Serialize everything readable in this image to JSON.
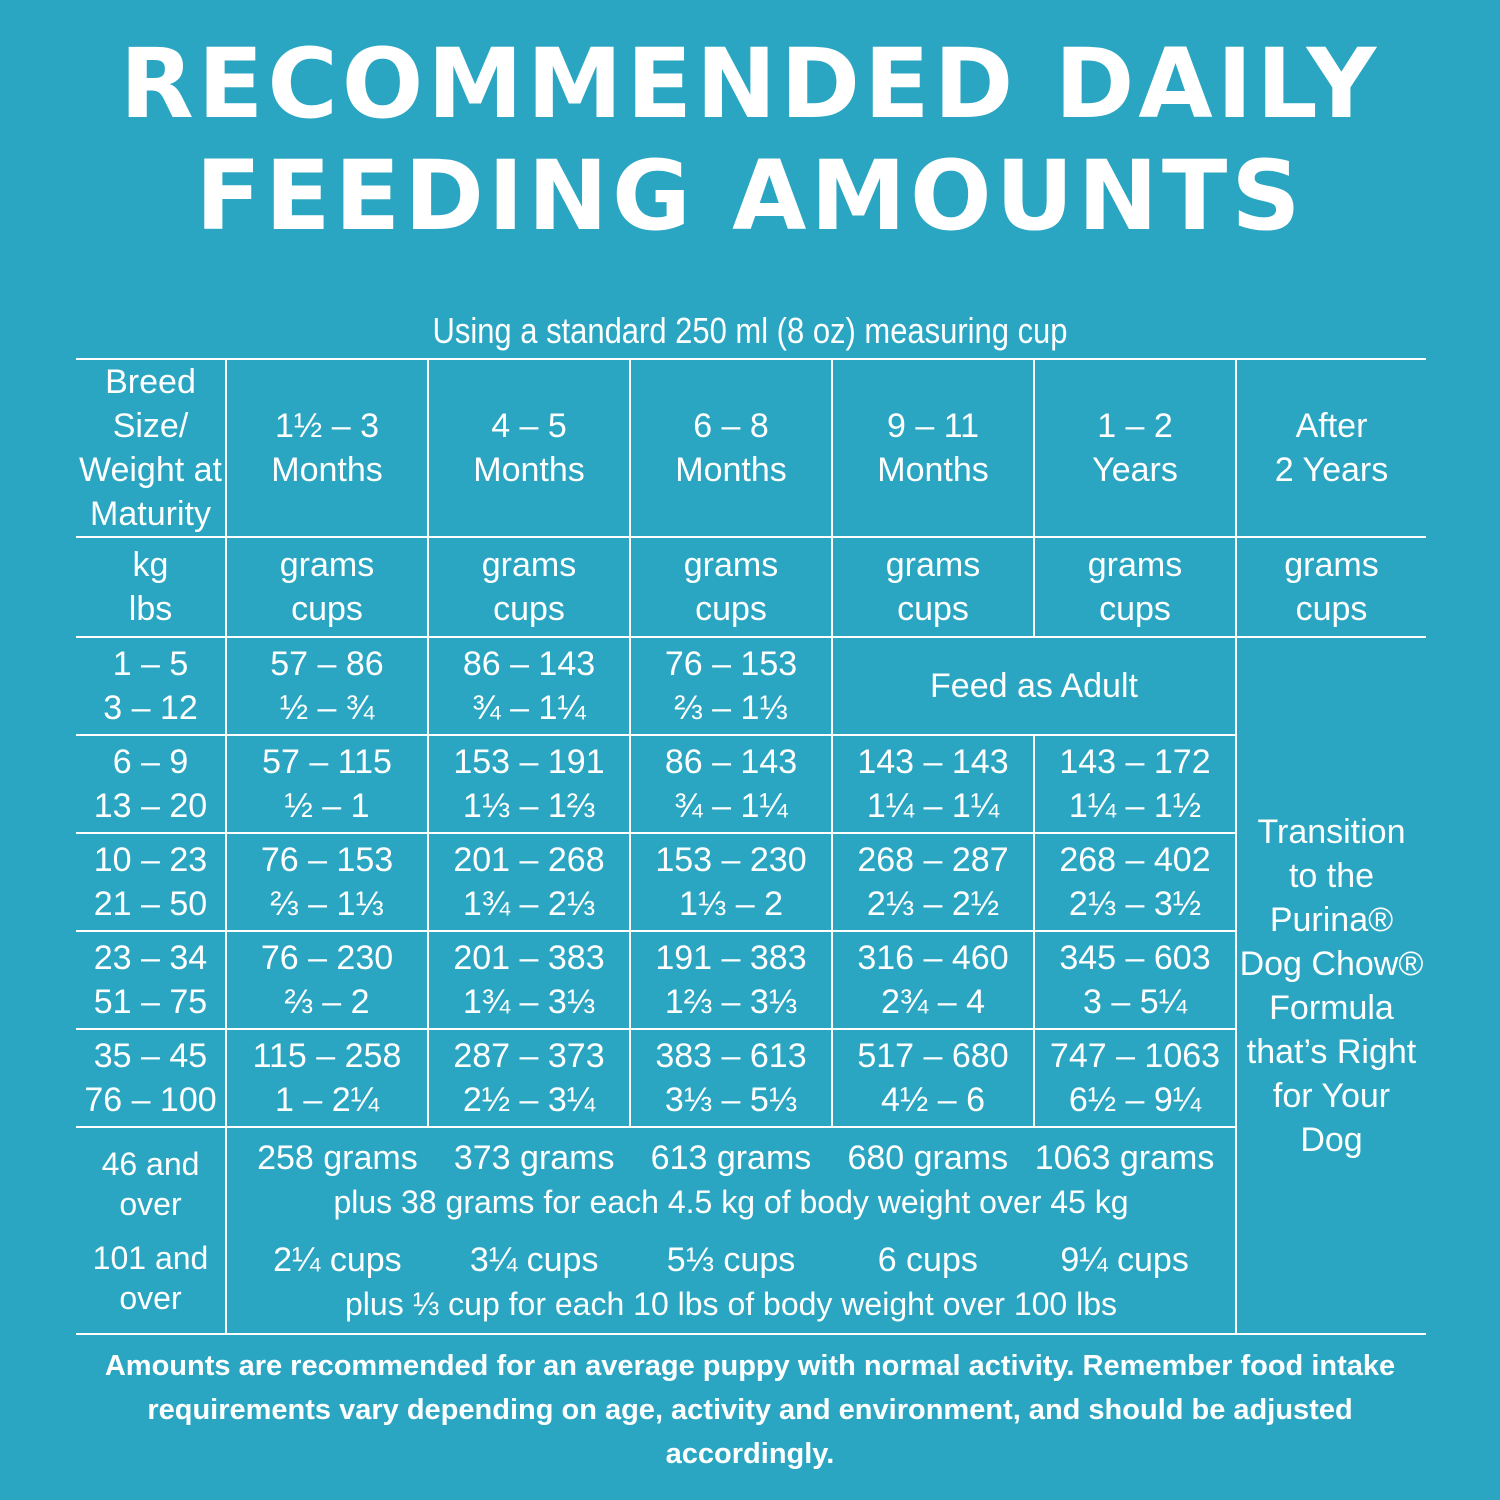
{
  "title": {
    "line1": "RECOMMENDED DAILY",
    "line2": "FEEDING AMOUNTS"
  },
  "subtitle": "Using a standard 250 ml (8 oz) measuring cup",
  "header": {
    "breed_line1": "Breed Size/",
    "breed_line2": "Weight at",
    "breed_line3": "Maturity",
    "col1": {
      "line1": "1½ – 3",
      "line2": "Months"
    },
    "col2": {
      "line1": "4 – 5",
      "line2": "Months"
    },
    "col3": {
      "line1": "6 – 8",
      "line2": "Months"
    },
    "col4": {
      "line1": "9 – 11",
      "line2": "Months"
    },
    "col5": {
      "line1": "1 – 2",
      "line2": "Years"
    },
    "col6": {
      "line1": "After",
      "line2": "2 Years"
    }
  },
  "units": {
    "weight": {
      "line1": "kg",
      "line2": "lbs"
    },
    "amount": {
      "line1": "grams",
      "line2": "cups"
    }
  },
  "rows": [
    {
      "kg": "1 – 5",
      "lbs": "3 – 12",
      "c1": {
        "grams": "57 – 86",
        "cups": "½ – ¾"
      },
      "c2": {
        "grams": "86 – 143",
        "cups": "¾ – 1¼"
      },
      "c3": {
        "grams": "76 – 153",
        "cups": "⅔ – 1⅓"
      },
      "adult": "Feed as Adult"
    },
    {
      "kg": "6 – 9",
      "lbs": "13 – 20",
      "c1": {
        "grams": "57 – 115",
        "cups": "½ – 1"
      },
      "c2": {
        "grams": "153 – 191",
        "cups": "1⅓ – 1⅔"
      },
      "c3": {
        "grams": "86 – 143",
        "cups": "¾ – 1¼"
      },
      "c4": {
        "grams": "143 – 143",
        "cups": "1¼ – 1¼"
      },
      "c5": {
        "grams": "143 – 172",
        "cups": "1¼ – 1½"
      }
    },
    {
      "kg": "10 – 23",
      "lbs": "21 – 50",
      "c1": {
        "grams": "76 – 153",
        "cups": "⅔ – 1⅓"
      },
      "c2": {
        "grams": "201 – 268",
        "cups": "1¾ – 2⅓"
      },
      "c3": {
        "grams": "153 – 230",
        "cups": "1⅓ – 2"
      },
      "c4": {
        "grams": "268 – 287",
        "cups": "2⅓ – 2½"
      },
      "c5": {
        "grams": "268 – 402",
        "cups": "2⅓ – 3½"
      }
    },
    {
      "kg": "23 – 34",
      "lbs": "51 – 75",
      "c1": {
        "grams": "76 – 230",
        "cups": "⅔ – 2"
      },
      "c2": {
        "grams": "201 – 383",
        "cups": "1¾ – 3⅓"
      },
      "c3": {
        "grams": "191 – 383",
        "cups": "1⅔ – 3⅓"
      },
      "c4": {
        "grams": "316 – 460",
        "cups": "2¾ – 4"
      },
      "c5": {
        "grams": "345 – 603",
        "cups": "3 – 5¼"
      }
    },
    {
      "kg": "35 – 45",
      "lbs": "76 – 100",
      "c1": {
        "grams": "115 – 258",
        "cups": "1 – 2¼"
      },
      "c2": {
        "grams": "287 – 373",
        "cups": "2½ – 3¼"
      },
      "c3": {
        "grams": "383 – 613",
        "cups": "3⅓ – 5⅓"
      },
      "c4": {
        "grams": "517 – 680",
        "cups": "4½ – 6"
      },
      "c5": {
        "grams": "747 – 1063",
        "cups": "6½ – 9¼"
      }
    }
  ],
  "transition": {
    "line1": "Transition",
    "line2": "to the",
    "line3": "Purina®",
    "line4": "Dog Chow®",
    "line5": "Formula",
    "line6": "that’s Right",
    "line7": "for Your",
    "line8": "Dog"
  },
  "last_row": {
    "kg_line1": "46 and",
    "kg_line2": "over",
    "lbs_line1": "101 and",
    "lbs_line2": "over",
    "grams": [
      "258 grams",
      "373 grams",
      "613 grams",
      "680 grams",
      "1063 grams"
    ],
    "grams_note": "plus 38 grams for each 4.5 kg of body weight over 45 kg",
    "cups": [
      "2¼ cups",
      "3¼ cups",
      "5⅓ cups",
      "6 cups",
      "9¼ cups"
    ],
    "cups_note": "plus ⅓ cup for each 10 lbs of body weight over 100 lbs"
  },
  "footer": {
    "line1": "Amounts are recommended for an average puppy with normal activity. Remember food intake",
    "line2": "requirements vary depending on age, activity and environment, and should be adjusted accordingly."
  },
  "colors": {
    "background": "#2aa6c2",
    "text": "#ffffff"
  }
}
